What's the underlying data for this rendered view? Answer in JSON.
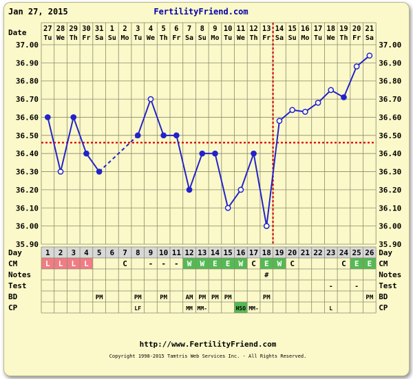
{
  "header": {
    "date": "Jan 27, 2015",
    "site": "FertilityFriend.com"
  },
  "footer": {
    "url": "http://www.FertilityFriend.com",
    "copyright": "Copyright 1998-2015 Tamtris Web Services Inc. - All Rights Reserved."
  },
  "row_labels": {
    "date": "Date",
    "day": "Day",
    "cm": "CM",
    "notes": "Notes",
    "test": "Test",
    "bd": "BD",
    "cp": "CP"
  },
  "colors": {
    "background": "#fbf8c9",
    "grid": "#8a8a6a",
    "line": "#2222cc",
    "coverline": "#dd0000",
    "ovulation": "#dd0000",
    "day_row": "#d8d8d8",
    "cm_red": "#f07c85",
    "cm_green": "#55b955",
    "site_title": "#0000aa"
  },
  "chart_data": {
    "type": "line",
    "ylabel": "",
    "xlabel": "",
    "ylim": [
      35.9,
      37.0
    ],
    "y_ticks": [
      "37.00",
      "36.90",
      "36.80",
      "36.70",
      "36.60",
      "36.50",
      "36.40",
      "36.30",
      "36.20",
      "36.10",
      "36.00",
      "35.90"
    ],
    "dates": [
      "27",
      "28",
      "29",
      "30",
      "31",
      "1",
      "2",
      "3",
      "4",
      "5",
      "6",
      "7",
      "8",
      "9",
      "10",
      "11",
      "12",
      "13",
      "14",
      "15",
      "16",
      "17",
      "18",
      "19",
      "20",
      "21"
    ],
    "weekdays": [
      "Tu",
      "We",
      "Th",
      "Fr",
      "Sa",
      "Su",
      "Mo",
      "Tu",
      "We",
      "Th",
      "Fr",
      "Sa",
      "Su",
      "Mo",
      "Tu",
      "We",
      "Th",
      "Fr",
      "Sa",
      "Su",
      "Mo",
      "Tu",
      "We",
      "Th",
      "Fr",
      "Sa"
    ],
    "cycle_days": [
      1,
      2,
      3,
      4,
      5,
      6,
      7,
      8,
      9,
      10,
      11,
      12,
      13,
      14,
      15,
      16,
      17,
      18,
      19,
      20,
      21,
      22,
      23,
      24,
      25,
      26
    ],
    "series": [
      {
        "values": [
          36.6,
          36.3,
          36.6,
          36.4,
          36.3,
          null,
          null,
          36.5,
          36.7,
          36.5,
          36.5,
          36.2,
          36.4,
          36.4,
          36.1,
          36.2,
          36.4,
          36.0,
          36.58,
          36.64,
          36.63,
          36.68,
          36.75,
          36.71,
          36.88,
          36.94
        ],
        "marker": [
          "filled",
          "open",
          "filled",
          "filled",
          "filled",
          null,
          null,
          "filled",
          "open",
          "filled",
          "filled",
          "filled",
          "filled",
          "filled",
          "open",
          "open",
          "filled",
          "open",
          "open",
          "open",
          "open",
          "open",
          "open",
          "filled",
          "open",
          "open"
        ]
      }
    ],
    "coverline": 36.46,
    "ovulation_day": 18,
    "ovulation_marker": "#",
    "cm": [
      "L",
      "L",
      "L",
      "L",
      "",
      "",
      "C",
      "",
      "-",
      "-",
      "-",
      "W",
      "W",
      "E",
      "E",
      "W",
      "C",
      "E",
      "W",
      "C",
      "",
      "",
      "",
      "C",
      "E",
      "E"
    ],
    "cm_color": [
      "red",
      "red",
      "red",
      "red",
      "",
      "",
      "",
      "",
      "",
      "",
      "",
      "green",
      "green",
      "green",
      "green",
      "green",
      "",
      "green",
      "green",
      "",
      "",
      "",
      "",
      "",
      "green",
      "green"
    ],
    "notes": [
      "",
      "",
      "",
      "",
      "",
      "",
      "",
      "",
      "",
      "",
      "",
      "",
      "",
      "",
      "",
      "",
      "",
      "#",
      "",
      "",
      "",
      "",
      "",
      "",
      "",
      ""
    ],
    "test": [
      "",
      "",
      "",
      "",
      "",
      "",
      "",
      "",
      "",
      "",
      "",
      "",
      "",
      "",
      "",
      "",
      "",
      "",
      "",
      "",
      "",
      "",
      "-",
      "",
      "-",
      ""
    ],
    "bd": [
      "",
      "",
      "",
      "",
      "PM",
      "",
      "",
      "PM",
      "",
      "PM",
      "",
      "AM",
      "PM",
      "PM",
      "PM",
      "",
      "",
      "PM",
      "",
      "",
      "",
      "",
      "",
      "",
      "",
      "PM"
    ],
    "cp": [
      "",
      "",
      "",
      "",
      "",
      "",
      "",
      "LF",
      "",
      "",
      "",
      "MM",
      "MM-",
      "",
      "",
      "HSO",
      "MM-",
      "",
      "",
      "",
      "",
      "",
      "L",
      "",
      "",
      ""
    ],
    "cp_highlight": [
      "",
      "",
      "",
      "",
      "",
      "",
      "",
      "",
      "",
      "",
      "",
      "",
      "",
      "",
      "",
      "green",
      "",
      "",
      "",
      "",
      "",
      "",
      "",
      "",
      "",
      ""
    ]
  }
}
